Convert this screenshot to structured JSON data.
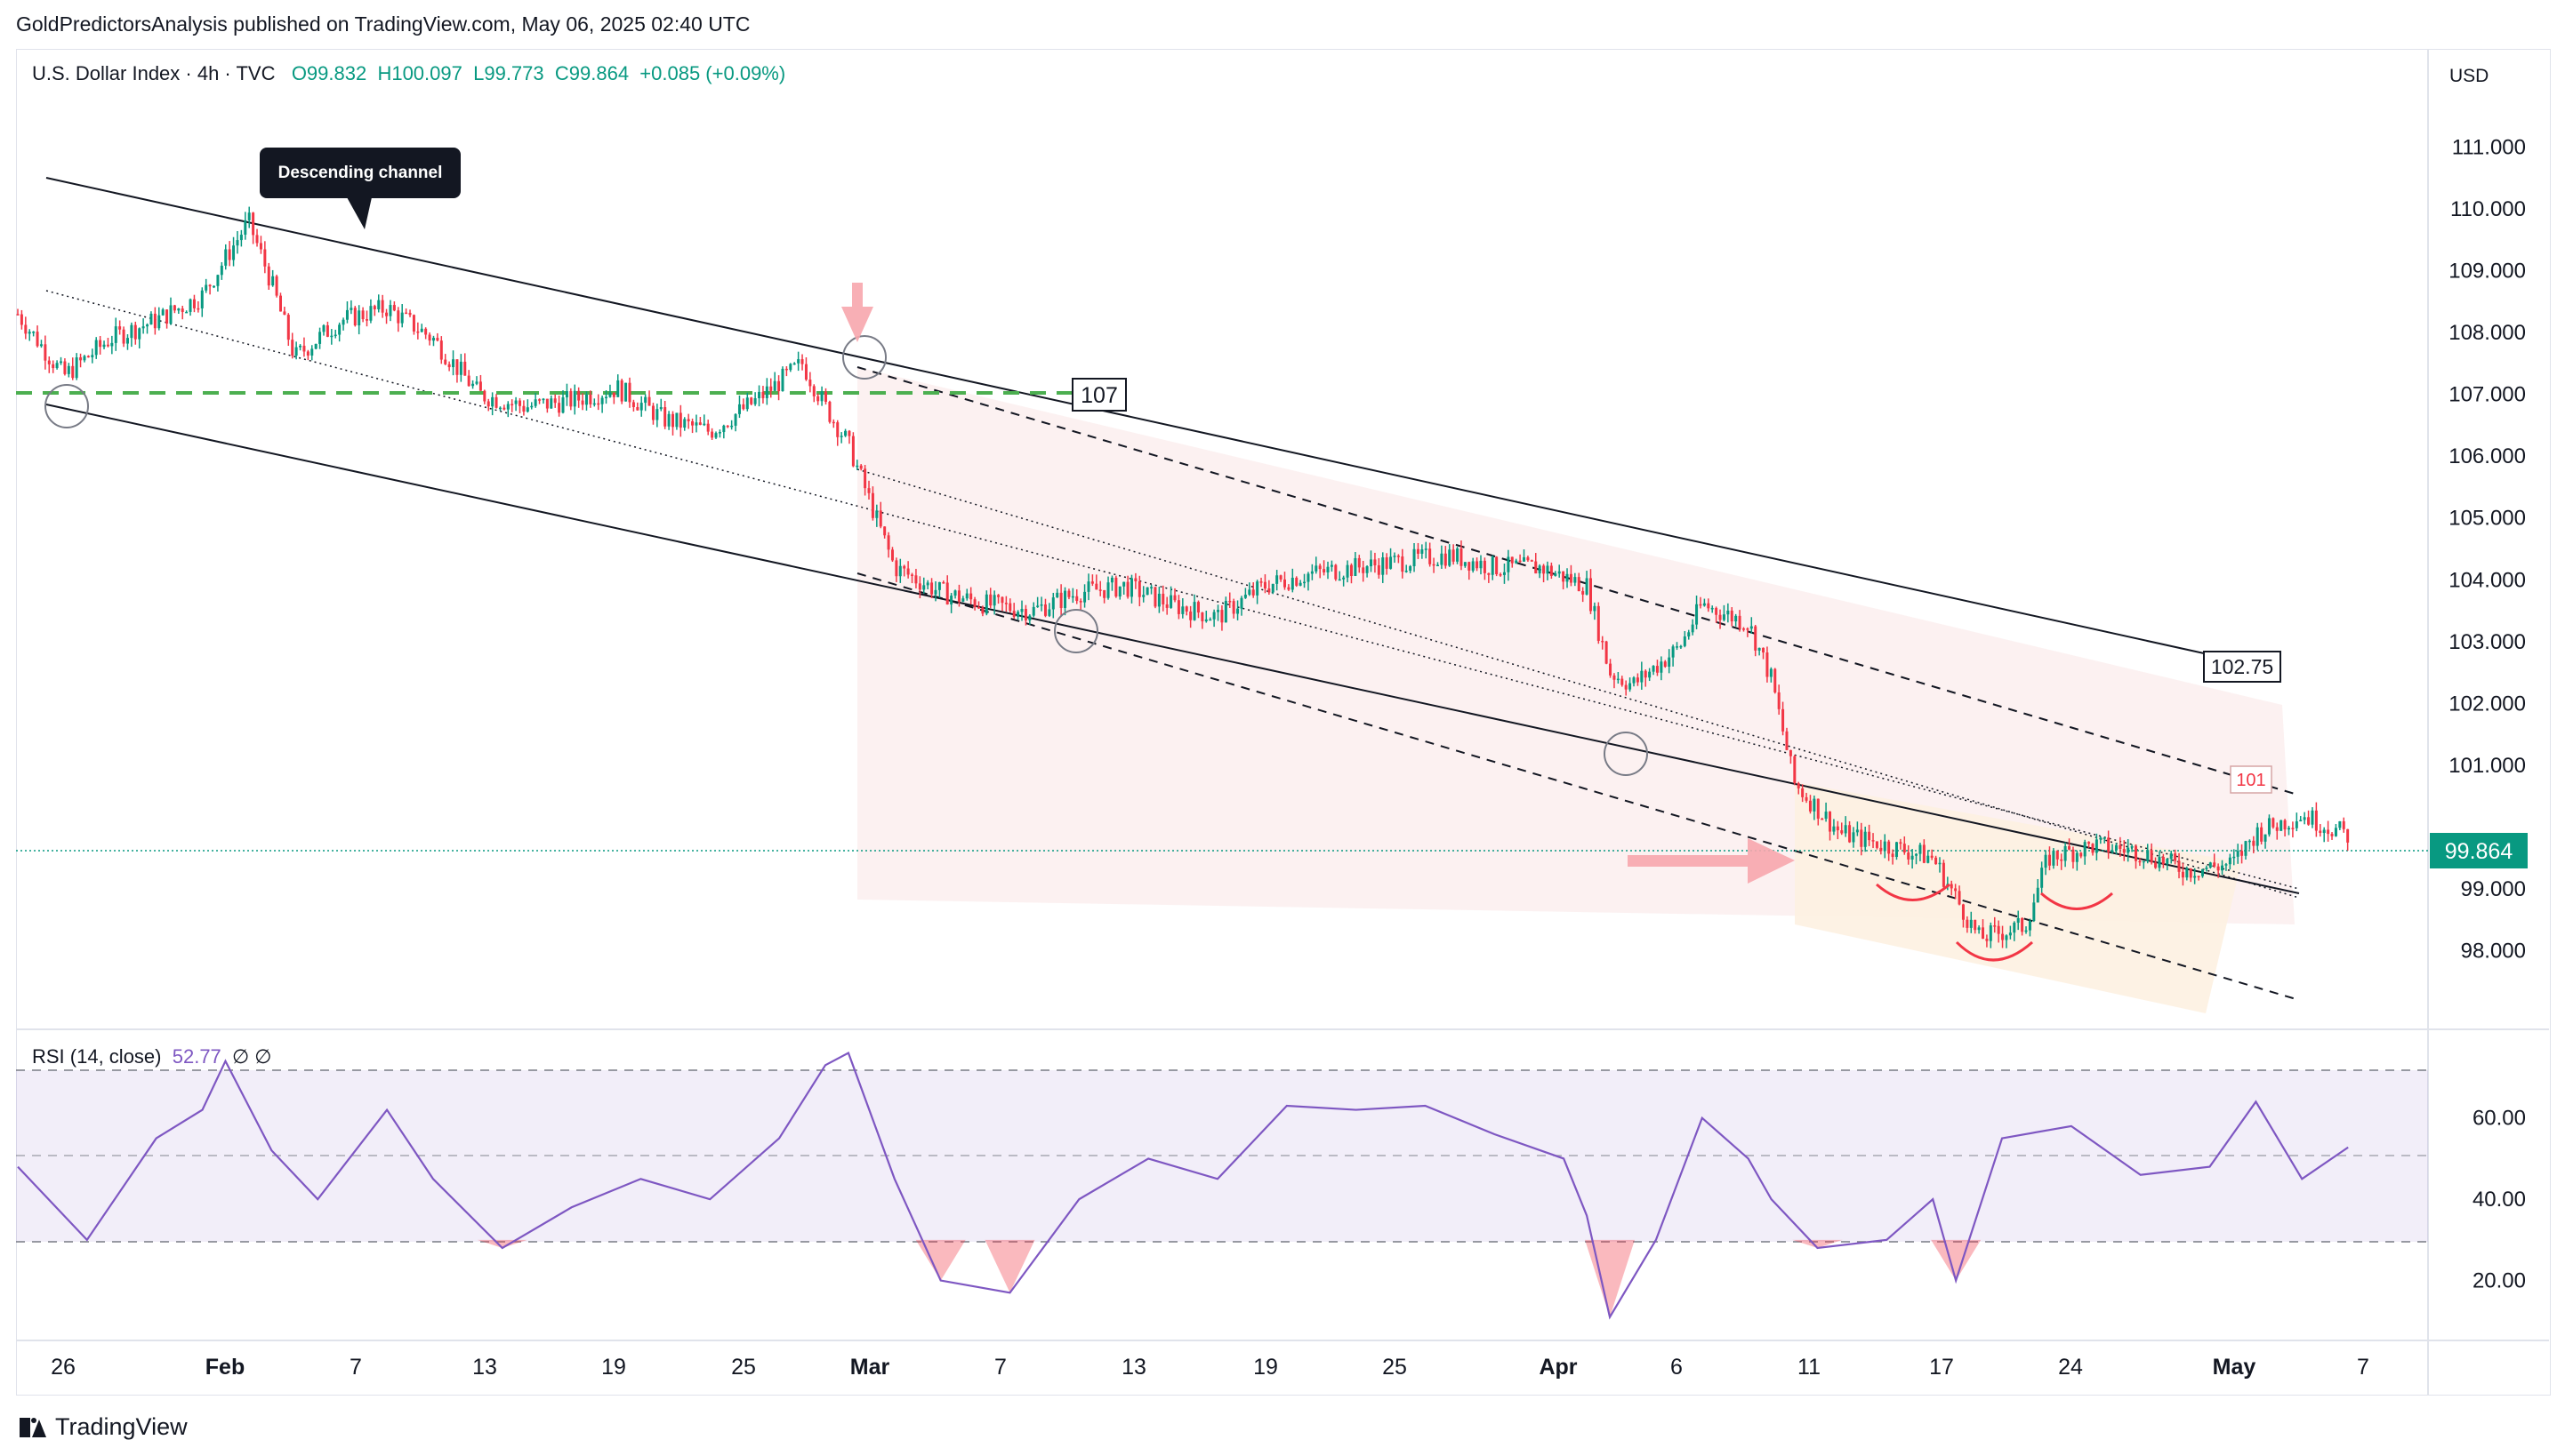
{
  "header": {
    "publisher": "GoldPredictorsAnalysis published on TradingView.com, May 06, 2025 02:40 UTC"
  },
  "legend": {
    "symbol": "U.S. Dollar Index · 4h · TVC",
    "open": "O99.832",
    "high": "H100.097",
    "low": "L99.773",
    "close": "C99.864",
    "change": "+0.085 (+0.09%)"
  },
  "rsi_legend": {
    "label": "RSI (14, close)",
    "value": "52.77",
    "extra": "∅  ∅"
  },
  "currency": "USD",
  "brand": "TradingView",
  "colors": {
    "up": "#089981",
    "down": "#f23645",
    "rsi": "#7e57c2",
    "support": "#4caf50",
    "last_price_bg": "#089981",
    "arrow": "#f7a6ad",
    "channel_fill": "#fcefef",
    "wedge_fill": "#fdf1e1"
  },
  "chart_data": [
    {
      "type": "candlestick",
      "title": "U.S. Dollar Index · 4h · TVC",
      "x_ticks": [
        "26",
        "Feb",
        "7",
        "13",
        "19",
        "25",
        "Mar",
        "7",
        "13",
        "19",
        "25",
        "Apr",
        "6",
        "11",
        "17",
        "24",
        "May",
        "7"
      ],
      "x_range": [
        "2025-01-24",
        "2025-05-08"
      ],
      "y_ticks": [
        "111.000",
        "110.000",
        "109.000",
        "108.000",
        "107.000",
        "106.000",
        "105.000",
        "104.000",
        "103.000",
        "102.000",
        "101.000",
        "99.000",
        "98.000"
      ],
      "ylim": [
        97.2,
        111.8
      ],
      "last_price": "99.864",
      "series": [
        {
          "name": "U.S. Dollar Index",
          "x": [
            "2025-01-24",
            "2025-01-26",
            "2025-01-28",
            "2025-01-30",
            "2025-02-01",
            "2025-02-03",
            "2025-02-04",
            "2025-02-05",
            "2025-02-07",
            "2025-02-09",
            "2025-02-11",
            "2025-02-13",
            "2025-02-15",
            "2025-02-17",
            "2025-02-19",
            "2025-02-21",
            "2025-02-23",
            "2025-02-25",
            "2025-02-27",
            "2025-02-28",
            "2025-03-01",
            "2025-03-03",
            "2025-03-05",
            "2025-03-07",
            "2025-03-09",
            "2025-03-11",
            "2025-03-13",
            "2025-03-15",
            "2025-03-17",
            "2025-03-19",
            "2025-03-21",
            "2025-03-23",
            "2025-03-25",
            "2025-03-27",
            "2025-03-29",
            "2025-03-31",
            "2025-04-02",
            "2025-04-03",
            "2025-04-04",
            "2025-04-06",
            "2025-04-07",
            "2025-04-09",
            "2025-04-10",
            "2025-04-11",
            "2025-04-13",
            "2025-04-15",
            "2025-04-17",
            "2025-04-19",
            "2025-04-21",
            "2025-04-22",
            "2025-04-24",
            "2025-04-26",
            "2025-04-28",
            "2025-04-30",
            "2025-05-01",
            "2025-05-03",
            "2025-05-05"
          ],
          "close": [
            108.3,
            107.3,
            107.9,
            108.2,
            108.6,
            109.8,
            108.8,
            107.6,
            108.2,
            108.4,
            107.9,
            107.0,
            106.8,
            106.9,
            107.1,
            106.6,
            106.4,
            106.9,
            107.5,
            106.8,
            106.2,
            104.2,
            103.8,
            103.6,
            103.5,
            103.8,
            103.9,
            103.6,
            103.4,
            103.9,
            104.1,
            104.2,
            104.3,
            104.4,
            104.2,
            104.2,
            103.9,
            102.5,
            102.3,
            102.9,
            103.6,
            103.3,
            102.4,
            100.7,
            99.9,
            99.7,
            99.5,
            98.2,
            98.4,
            99.5,
            99.7,
            99.6,
            99.3,
            99.4,
            99.9,
            100.2,
            99.86
          ]
        }
      ],
      "annotations": [
        {
          "type": "callout",
          "text": "Descending channel"
        },
        {
          "type": "price_label",
          "text": "107"
        },
        {
          "type": "price_label",
          "text": "102.75"
        },
        {
          "type": "price_label",
          "text": "101"
        }
      ]
    },
    {
      "type": "line",
      "title": "RSI (14, close)",
      "y_ticks": [
        "60.00",
        "40.00",
        "20.00"
      ],
      "ylim": [
        7,
        77
      ],
      "levels": [
        70,
        50,
        30
      ],
      "series": [
        {
          "name": "RSI (14, close)",
          "x": [
            "2025-01-24",
            "2025-01-27",
            "2025-01-30",
            "2025-02-01",
            "2025-02-02",
            "2025-02-04",
            "2025-02-06",
            "2025-02-09",
            "2025-02-11",
            "2025-02-14",
            "2025-02-17",
            "2025-02-20",
            "2025-02-23",
            "2025-02-26",
            "2025-02-28",
            "2025-03-01",
            "2025-03-03",
            "2025-03-05",
            "2025-03-08",
            "2025-03-11",
            "2025-03-14",
            "2025-03-17",
            "2025-03-20",
            "2025-03-23",
            "2025-03-26",
            "2025-03-29",
            "2025-04-01",
            "2025-04-02",
            "2025-04-03",
            "2025-04-05",
            "2025-04-07",
            "2025-04-09",
            "2025-04-10",
            "2025-04-12",
            "2025-04-15",
            "2025-04-17",
            "2025-04-18",
            "2025-04-20",
            "2025-04-23",
            "2025-04-26",
            "2025-04-29",
            "2025-05-01",
            "2025-05-03",
            "2025-05-05"
          ],
          "values": [
            48,
            30,
            55,
            62,
            74,
            52,
            40,
            62,
            45,
            28,
            38,
            45,
            40,
            55,
            73,
            76,
            45,
            20,
            17,
            40,
            50,
            45,
            63,
            62,
            63,
            56,
            50,
            36,
            11,
            30,
            60,
            50,
            40,
            28,
            30,
            40,
            20,
            55,
            58,
            46,
            48,
            64,
            45,
            52.77
          ]
        }
      ]
    }
  ]
}
